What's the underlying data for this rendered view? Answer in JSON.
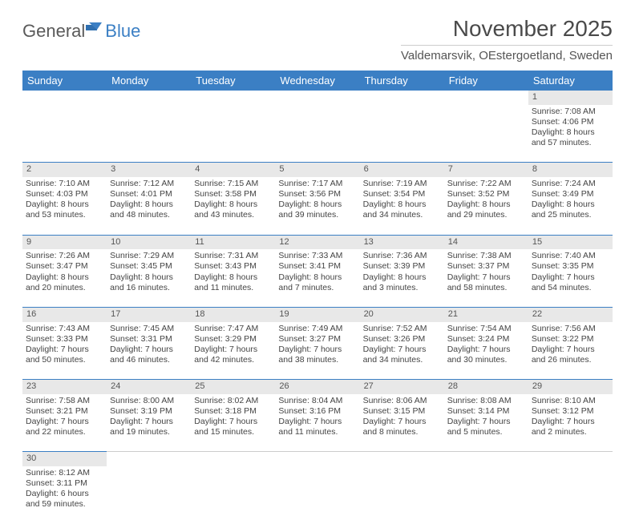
{
  "brand": {
    "part1": "General",
    "part2": "Blue"
  },
  "header": {
    "title": "November 2025",
    "location": "Valdemarsvik, OEstergoetland, Sweden"
  },
  "colors": {
    "header_bg": "#3b7fc4",
    "header_text": "#ffffff",
    "daynum_bg": "#e8e8e8",
    "rule": "#3b7fc4",
    "page_bg": "#ffffff",
    "body_text": "#444444"
  },
  "table": {
    "columns": [
      "Sunday",
      "Monday",
      "Tuesday",
      "Wednesday",
      "Thursday",
      "Friday",
      "Saturday"
    ],
    "weeks": [
      {
        "nums": [
          "",
          "",
          "",
          "",
          "",
          "",
          "1"
        ],
        "cells": [
          null,
          null,
          null,
          null,
          null,
          null,
          {
            "sunrise": "Sunrise: 7:08 AM",
            "sunset": "Sunset: 4:06 PM",
            "day1": "Daylight: 8 hours",
            "day2": "and 57 minutes."
          }
        ]
      },
      {
        "nums": [
          "2",
          "3",
          "4",
          "5",
          "6",
          "7",
          "8"
        ],
        "cells": [
          {
            "sunrise": "Sunrise: 7:10 AM",
            "sunset": "Sunset: 4:03 PM",
            "day1": "Daylight: 8 hours",
            "day2": "and 53 minutes."
          },
          {
            "sunrise": "Sunrise: 7:12 AM",
            "sunset": "Sunset: 4:01 PM",
            "day1": "Daylight: 8 hours",
            "day2": "and 48 minutes."
          },
          {
            "sunrise": "Sunrise: 7:15 AM",
            "sunset": "Sunset: 3:58 PM",
            "day1": "Daylight: 8 hours",
            "day2": "and 43 minutes."
          },
          {
            "sunrise": "Sunrise: 7:17 AM",
            "sunset": "Sunset: 3:56 PM",
            "day1": "Daylight: 8 hours",
            "day2": "and 39 minutes."
          },
          {
            "sunrise": "Sunrise: 7:19 AM",
            "sunset": "Sunset: 3:54 PM",
            "day1": "Daylight: 8 hours",
            "day2": "and 34 minutes."
          },
          {
            "sunrise": "Sunrise: 7:22 AM",
            "sunset": "Sunset: 3:52 PM",
            "day1": "Daylight: 8 hours",
            "day2": "and 29 minutes."
          },
          {
            "sunrise": "Sunrise: 7:24 AM",
            "sunset": "Sunset: 3:49 PM",
            "day1": "Daylight: 8 hours",
            "day2": "and 25 minutes."
          }
        ]
      },
      {
        "nums": [
          "9",
          "10",
          "11",
          "12",
          "13",
          "14",
          "15"
        ],
        "cells": [
          {
            "sunrise": "Sunrise: 7:26 AM",
            "sunset": "Sunset: 3:47 PM",
            "day1": "Daylight: 8 hours",
            "day2": "and 20 minutes."
          },
          {
            "sunrise": "Sunrise: 7:29 AM",
            "sunset": "Sunset: 3:45 PM",
            "day1": "Daylight: 8 hours",
            "day2": "and 16 minutes."
          },
          {
            "sunrise": "Sunrise: 7:31 AM",
            "sunset": "Sunset: 3:43 PM",
            "day1": "Daylight: 8 hours",
            "day2": "and 11 minutes."
          },
          {
            "sunrise": "Sunrise: 7:33 AM",
            "sunset": "Sunset: 3:41 PM",
            "day1": "Daylight: 8 hours",
            "day2": "and 7 minutes."
          },
          {
            "sunrise": "Sunrise: 7:36 AM",
            "sunset": "Sunset: 3:39 PM",
            "day1": "Daylight: 8 hours",
            "day2": "and 3 minutes."
          },
          {
            "sunrise": "Sunrise: 7:38 AM",
            "sunset": "Sunset: 3:37 PM",
            "day1": "Daylight: 7 hours",
            "day2": "and 58 minutes."
          },
          {
            "sunrise": "Sunrise: 7:40 AM",
            "sunset": "Sunset: 3:35 PM",
            "day1": "Daylight: 7 hours",
            "day2": "and 54 minutes."
          }
        ]
      },
      {
        "nums": [
          "16",
          "17",
          "18",
          "19",
          "20",
          "21",
          "22"
        ],
        "cells": [
          {
            "sunrise": "Sunrise: 7:43 AM",
            "sunset": "Sunset: 3:33 PM",
            "day1": "Daylight: 7 hours",
            "day2": "and 50 minutes."
          },
          {
            "sunrise": "Sunrise: 7:45 AM",
            "sunset": "Sunset: 3:31 PM",
            "day1": "Daylight: 7 hours",
            "day2": "and 46 minutes."
          },
          {
            "sunrise": "Sunrise: 7:47 AM",
            "sunset": "Sunset: 3:29 PM",
            "day1": "Daylight: 7 hours",
            "day2": "and 42 minutes."
          },
          {
            "sunrise": "Sunrise: 7:49 AM",
            "sunset": "Sunset: 3:27 PM",
            "day1": "Daylight: 7 hours",
            "day2": "and 38 minutes."
          },
          {
            "sunrise": "Sunrise: 7:52 AM",
            "sunset": "Sunset: 3:26 PM",
            "day1": "Daylight: 7 hours",
            "day2": "and 34 minutes."
          },
          {
            "sunrise": "Sunrise: 7:54 AM",
            "sunset": "Sunset: 3:24 PM",
            "day1": "Daylight: 7 hours",
            "day2": "and 30 minutes."
          },
          {
            "sunrise": "Sunrise: 7:56 AM",
            "sunset": "Sunset: 3:22 PM",
            "day1": "Daylight: 7 hours",
            "day2": "and 26 minutes."
          }
        ]
      },
      {
        "nums": [
          "23",
          "24",
          "25",
          "26",
          "27",
          "28",
          "29"
        ],
        "cells": [
          {
            "sunrise": "Sunrise: 7:58 AM",
            "sunset": "Sunset: 3:21 PM",
            "day1": "Daylight: 7 hours",
            "day2": "and 22 minutes."
          },
          {
            "sunrise": "Sunrise: 8:00 AM",
            "sunset": "Sunset: 3:19 PM",
            "day1": "Daylight: 7 hours",
            "day2": "and 19 minutes."
          },
          {
            "sunrise": "Sunrise: 8:02 AM",
            "sunset": "Sunset: 3:18 PM",
            "day1": "Daylight: 7 hours",
            "day2": "and 15 minutes."
          },
          {
            "sunrise": "Sunrise: 8:04 AM",
            "sunset": "Sunset: 3:16 PM",
            "day1": "Daylight: 7 hours",
            "day2": "and 11 minutes."
          },
          {
            "sunrise": "Sunrise: 8:06 AM",
            "sunset": "Sunset: 3:15 PM",
            "day1": "Daylight: 7 hours",
            "day2": "and 8 minutes."
          },
          {
            "sunrise": "Sunrise: 8:08 AM",
            "sunset": "Sunset: 3:14 PM",
            "day1": "Daylight: 7 hours",
            "day2": "and 5 minutes."
          },
          {
            "sunrise": "Sunrise: 8:10 AM",
            "sunset": "Sunset: 3:12 PM",
            "day1": "Daylight: 7 hours",
            "day2": "and 2 minutes."
          }
        ]
      },
      {
        "nums": [
          "30",
          "",
          "",
          "",
          "",
          "",
          ""
        ],
        "cells": [
          {
            "sunrise": "Sunrise: 8:12 AM",
            "sunset": "Sunset: 3:11 PM",
            "day1": "Daylight: 6 hours",
            "day2": "and 59 minutes."
          },
          null,
          null,
          null,
          null,
          null,
          null
        ]
      }
    ]
  }
}
